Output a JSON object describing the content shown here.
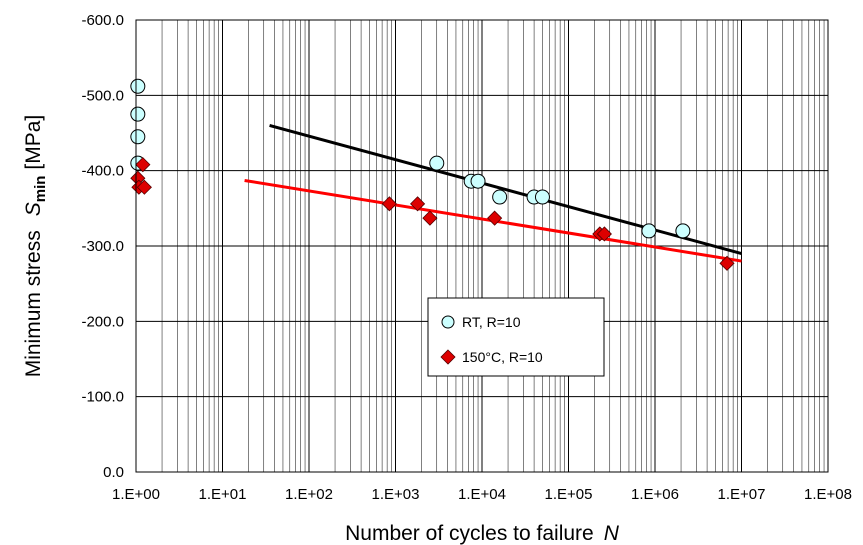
{
  "chart_data": {
    "type": "scatter",
    "x_scale": "log",
    "xlim": [
      1,
      100000000
    ],
    "ylim": [
      0,
      -600
    ],
    "x_ticks": [
      1,
      10,
      100,
      1000,
      10000,
      100000,
      1000000,
      10000000,
      100000000
    ],
    "x_tick_labels": [
      "1.E+00",
      "1.E+01",
      "1.E+02",
      "1.E+03",
      "1.E+04",
      "1.E+05",
      "1.E+06",
      "1.E+07",
      "1.E+08"
    ],
    "y_ticks": [
      0,
      -100,
      -200,
      -300,
      -400,
      -500,
      -600
    ],
    "y_tick_labels": [
      "0.0",
      "-100.0",
      "-200.0",
      "-300.0",
      "-400.0",
      "-500.0",
      "-600.0"
    ],
    "xlabel": {
      "main": "Number of cycles to failure",
      "var": "N"
    },
    "ylabel": {
      "main": "Minimum stress",
      "sym": "S",
      "sub": "min",
      "unit": "[MPa]"
    },
    "grid": "major and minor",
    "legend_position": "lower-middle",
    "series": [
      {
        "name": "RT, R=10",
        "marker": "circle",
        "color": "#ccffff",
        "edge": "#000000",
        "points": [
          [
            1.05,
            -512
          ],
          [
            1.05,
            -475
          ],
          [
            1.05,
            -445
          ],
          [
            1.05,
            -410
          ],
          [
            3000,
            -410
          ],
          [
            7500,
            -386
          ],
          [
            9000,
            -386
          ],
          [
            16000,
            -365
          ],
          [
            40000,
            -365
          ],
          [
            50000,
            -365
          ],
          [
            850000,
            -320
          ],
          [
            2100000,
            -320
          ]
        ],
        "fit": {
          "color": "#000000",
          "x": [
            35,
            10000000
          ],
          "y": [
            -460,
            -290
          ]
        }
      },
      {
        "name": "150°C, R=10",
        "marker": "diamond",
        "color": "#dd0000",
        "edge": "#550000",
        "points": [
          [
            1.2,
            -408
          ],
          [
            1.05,
            -390
          ],
          [
            1.08,
            -378
          ],
          [
            1.25,
            -378
          ],
          [
            850,
            -356
          ],
          [
            1800,
            -356
          ],
          [
            2500,
            -337
          ],
          [
            14000,
            -337
          ],
          [
            230000,
            -316
          ],
          [
            260000,
            -316
          ],
          [
            6800000,
            -277
          ]
        ],
        "fit": {
          "color": "#ff0000",
          "x": [
            18,
            10000000
          ],
          "y": [
            -387,
            -280
          ]
        }
      }
    ]
  }
}
